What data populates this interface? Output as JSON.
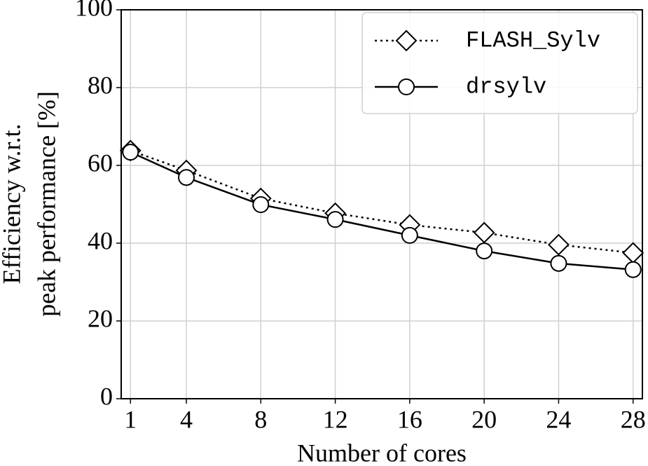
{
  "chart_data": {
    "type": "line",
    "xlabel": "Number of cores",
    "ylabel": [
      "Efficiency w.r.t.",
      "peak performance [%]"
    ],
    "x": [
      1,
      4,
      8,
      12,
      16,
      20,
      24,
      28
    ],
    "series": [
      {
        "name": "FLASH_Sylv",
        "color": "#000000",
        "linestyle": "dotted",
        "marker": "diamond",
        "values": [
          63.8,
          58.7,
          51.5,
          47.7,
          44.7,
          42.7,
          39.6,
          37.5
        ]
      },
      {
        "name": "drsylv",
        "color": "#000000",
        "linestyle": "solid",
        "marker": "circle",
        "values": [
          63.4,
          56.9,
          49.9,
          46.1,
          42.0,
          38.0,
          34.8,
          33.2
        ]
      }
    ],
    "xlim": [
      0.5,
      28.5
    ],
    "xticks": [
      1,
      4,
      8,
      12,
      16,
      20,
      24,
      28
    ],
    "ylim": [
      0,
      100
    ],
    "yticks": [
      0,
      20,
      40,
      60,
      80,
      100
    ],
    "grid": true,
    "legend": "upper right"
  }
}
